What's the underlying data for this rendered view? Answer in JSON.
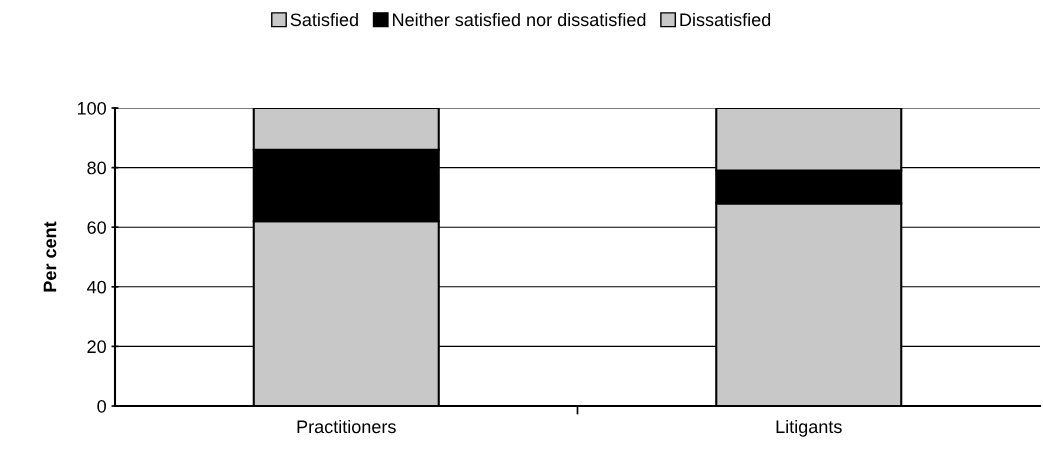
{
  "chart_data": {
    "type": "bar",
    "stacked": true,
    "ylabel": "Per cent",
    "categories": [
      "Practitioners",
      "Litigants"
    ],
    "series": [
      {
        "name": "Satisfied",
        "color": "#c8c8c8",
        "values": [
          62,
          68
        ]
      },
      {
        "name": "Neither satisfied nor dissatisfied",
        "color": "#000000",
        "values": [
          24,
          11
        ]
      },
      {
        "name": "Dissatisfied",
        "color": "#c8c8c8",
        "values": [
          14,
          21
        ]
      }
    ],
    "ylim": [
      0,
      100
    ],
    "yticks": [
      0,
      20,
      40,
      60,
      80,
      100
    ],
    "grid": "y",
    "legend": "top"
  }
}
